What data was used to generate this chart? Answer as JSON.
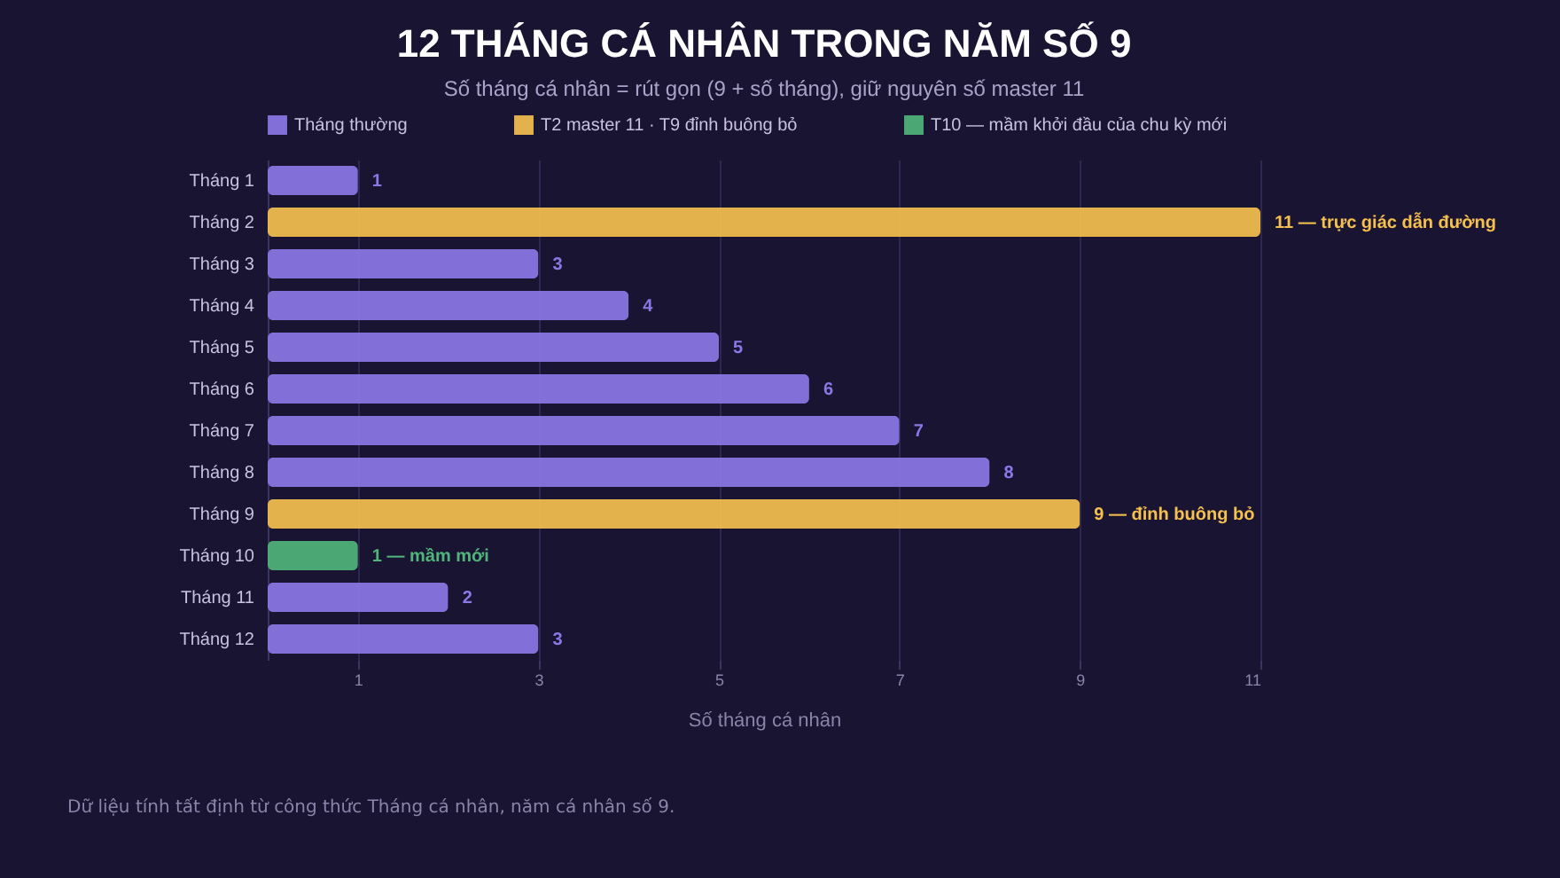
{
  "chart_data": {
    "type": "bar",
    "orientation": "horizontal",
    "title": "12 THÁNG CÁ NHÂN TRONG NĂM SỐ 9",
    "subtitle": "Số tháng cá nhân = rút gọn (9 + số tháng), giữ nguyên số master 11",
    "xlabel": "Số tháng cá nhân",
    "categories": [
      "Tháng 1",
      "Tháng 2",
      "Tháng 3",
      "Tháng 4",
      "Tháng 5",
      "Tháng 6",
      "Tháng 7",
      "Tháng 8",
      "Tháng 9",
      "Tháng 10",
      "Tháng 11",
      "Tháng 12"
    ],
    "series": [
      {
        "name": "Tháng thường",
        "color": "#8b78e6",
        "values": [
          1,
          null,
          3,
          4,
          5,
          6,
          7,
          8,
          null,
          null,
          2,
          3
        ],
        "value_labels": [
          "1",
          null,
          "3",
          "4",
          "5",
          "6",
          "7",
          "8",
          null,
          null,
          "2",
          "3"
        ]
      },
      {
        "name": "T2 master 11 · T9 đỉnh buông bỏ",
        "color": "#f5c04e",
        "values": [
          null,
          11,
          null,
          null,
          null,
          null,
          null,
          null,
          9,
          null,
          null,
          null
        ],
        "value_labels": [
          null,
          "11 — trực giác dẫn đường",
          null,
          null,
          null,
          null,
          null,
          null,
          "9 — đỉnh buông bỏ",
          null,
          null,
          null
        ]
      },
      {
        "name": "T10 — mầm khởi đầu của chu kỳ mới",
        "color": "#4fb57a",
        "values": [
          null,
          null,
          null,
          null,
          null,
          null,
          null,
          null,
          null,
          1,
          null,
          null
        ],
        "value_labels": [
          null,
          null,
          null,
          null,
          null,
          null,
          null,
          null,
          null,
          "1 — mầm mới",
          null,
          null
        ]
      }
    ],
    "xlim": [
      0,
      11
    ],
    "xticks": [
      1,
      3,
      5,
      7,
      9,
      11
    ],
    "grid": "x",
    "legend": "top",
    "annotations": [
      "Dữ liệu tính tất định từ công thức Tháng cá nhân, năm cá nhân số 9."
    ]
  }
}
